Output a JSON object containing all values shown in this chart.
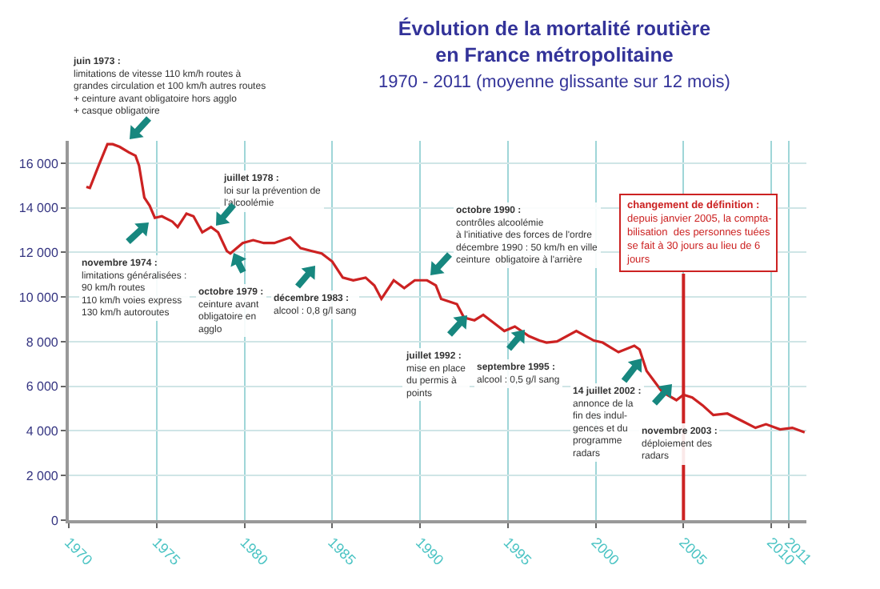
{
  "chart_data": {
    "type": "line",
    "title": "Évolution de la mortalité routière\nen France métropolitaine",
    "subtitle": "1970 - 2011 (moyenne glissante sur 12 mois)",
    "series": [
      {
        "color": "#cc2222",
        "x": [
          1971.0,
          1971.2,
          1971.4,
          1971.7,
          1972.2,
          1972.5,
          1972.9,
          1973.4,
          1973.8,
          1974.0,
          1974.3,
          1974.6,
          1974.9,
          1975.3,
          1975.9,
          1976.2,
          1976.7,
          1977.1,
          1977.6,
          1978.1,
          1978.5,
          1979.0,
          1979.2,
          1979.9,
          1980.5,
          1981.1,
          1981.7,
          1982.6,
          1983.2,
          1983.8,
          1984.4,
          1985.0,
          1985.6,
          1986.2,
          1986.9,
          1987.4,
          1987.8,
          1988.5,
          1989.1,
          1989.7,
          1990.4,
          1990.9,
          1991.2,
          1992.1,
          1992.5,
          1993.1,
          1993.6,
          1994.2,
          1994.8,
          1995.4,
          1996.2,
          1996.8,
          1997.2,
          1997.8,
          1998.9,
          1999.9,
          2000.4,
          2001.3,
          2002.2,
          2002.5,
          2002.9,
          2003.8,
          2004.6,
          2005.0,
          2005.5,
          2006.1,
          2006.7,
          2007.5,
          2008.4,
          2009.1,
          2009.7,
          2010.5,
          2011.2,
          2011.9
        ],
        "values": [
          14940,
          14890,
          15290,
          15890,
          16850,
          16850,
          16730,
          16490,
          16330,
          15890,
          14460,
          14100,
          13550,
          13620,
          13380,
          13140,
          13740,
          13620,
          12900,
          13140,
          12900,
          12060,
          11950,
          12420,
          12550,
          12420,
          12420,
          12670,
          12190,
          12070,
          11950,
          11590,
          10870,
          10750,
          10870,
          10520,
          9920,
          10750,
          10400,
          10750,
          10750,
          10520,
          9920,
          9680,
          9080,
          8960,
          9200,
          8840,
          8480,
          8680,
          8250,
          8050,
          7960,
          8010,
          8480,
          8050,
          7960,
          7530,
          7820,
          7650,
          6690,
          5740,
          5380,
          5620,
          5500,
          5140,
          4710,
          4780,
          4420,
          4140,
          4300,
          4070,
          4140,
          3940
        ]
      }
    ],
    "xlim": [
      1970,
      2012
    ],
    "xticks": [
      1970,
      1975,
      1980,
      1985,
      1990,
      1995,
      2000,
      2005,
      2010,
      2011
    ],
    "ylim": [
      0,
      17000
    ],
    "yticks": [
      0,
      {
        "value": 2000,
        "label": "2 000"
      },
      {
        "value": 4000,
        "label": "4 000"
      },
      {
        "value": 6000,
        "label": "6 000"
      },
      {
        "value": 8000,
        "label": "8 000"
      },
      {
        "value": 10000,
        "label": "10 000"
      },
      {
        "value": 12000,
        "label": "12 000"
      },
      {
        "value": 14000,
        "label": "14 000"
      },
      {
        "value": 16000,
        "label": "16 000"
      }
    ],
    "grid": true,
    "marker": "none",
    "line_style": "solid",
    "ref_lines": [
      {
        "axis": "x",
        "value": 2005,
        "color": "#cc2222",
        "label": "changement de définition :\ndepuis janvier 2005, la compta-\nbilisation  des personnes tuées\nse fait à 30 jours au lieu de 6\njours"
      }
    ],
    "annotations": [
      "juin 1973 :\nlimitations de vitesse 110 km/h routes à\ngrandes circulation et 100 km/h autres routes\n+ ceinture avant obligatoire hors agglo\n+ casque obligatoire",
      "novembre 1974 :\nlimitations généralisées :\n90 km/h routes\n110 km/h voies express\n130 km/h autoroutes",
      "juillet 1978 :\nloi sur la prévention de\nl'alcoolémie",
      "octobre 1979 :\nceinture avant\nobligatoire en\nagglo",
      "décembre 1983 :\nalcool : 0,8 g/l sang",
      "octobre 1990 :\ncontrôles alcoolémie\nà l'initiative des forces de l'ordre\ndécembre 1990 : 50 km/h en ville\nceinture  obligatoire à l'arrière",
      "juillet 1992 :\nmise en place\ndu permis à\npoints",
      "septembre 1995 :\nalcool : 0,5 g/l sang",
      "14 juillet 2002 :\nannonce de la\nfin des indul-\ngences et du\nprogramme\nradars",
      "novembre 2003 :\ndéploiement des\nradars"
    ]
  }
}
